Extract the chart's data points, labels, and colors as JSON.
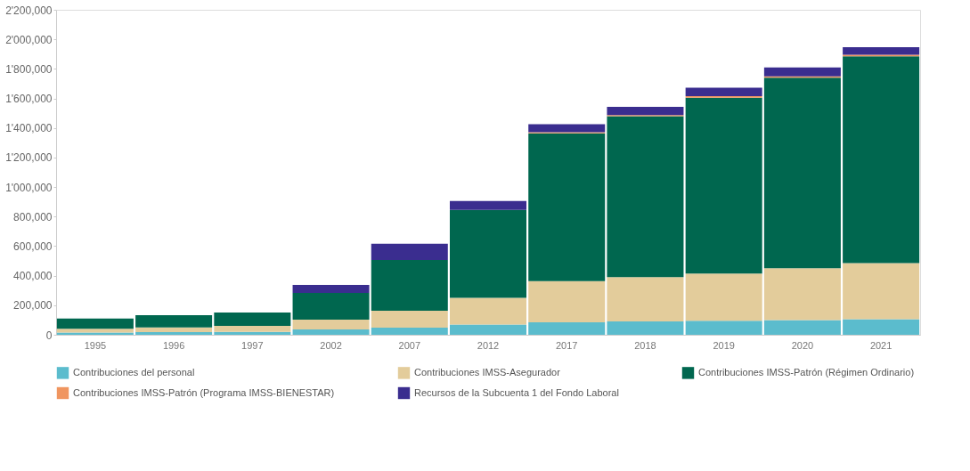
{
  "chart_data": {
    "type": "bar",
    "stacked": true,
    "categories": [
      "1995",
      "1996",
      "1997",
      "2002",
      "2007",
      "2012",
      "2017",
      "2018",
      "2019",
      "2020",
      "2021"
    ],
    "series": [
      {
        "name": "Contribuciones del personal",
        "color": "#5bbccd",
        "values": [
          15000,
          18000,
          20000,
          36000,
          48000,
          70000,
          85000,
          90000,
          95000,
          100000,
          105000
        ]
      },
      {
        "name": "Contribuciones IMSS-Asegurador",
        "color": "#e3cc9b",
        "values": [
          25000,
          32000,
          40000,
          66000,
          115000,
          180000,
          278000,
          300000,
          320000,
          350000,
          380000
        ]
      },
      {
        "name": "Contribuciones IMSS-Patrón (Régimen Ordinario)",
        "color": "#00674f",
        "values": [
          70000,
          83000,
          91000,
          181000,
          344000,
          595000,
          1000000,
          1090000,
          1190000,
          1290000,
          1400000
        ]
      },
      {
        "name": "Contribuciones IMSS-Patrón (Programa IMSS-BIENESTAR)",
        "color": "#f0955f",
        "values": [
          0,
          0,
          0,
          0,
          0,
          0,
          8000,
          8000,
          10000,
          10000,
          10000
        ]
      },
      {
        "name": "Recursos de la Subcuenta 1 del Fondo Laboral",
        "color": "#3a2d8f",
        "values": [
          0,
          0,
          0,
          54000,
          109000,
          60000,
          55000,
          55000,
          57000,
          60000,
          52000
        ]
      }
    ],
    "ylim": [
      0,
      2200000
    ],
    "yticks": [
      0,
      {
        "value": 200000,
        "label": "200,000"
      },
      {
        "value": 400000,
        "label": "400,000"
      },
      {
        "value": 600000,
        "label": "600,000"
      },
      {
        "value": 800000,
        "label": "800,000"
      },
      {
        "value": 1000000,
        "label": "1'000,000"
      },
      {
        "value": 1200000,
        "label": "1'200,000"
      },
      {
        "value": 1400000,
        "label": "1'400,000"
      },
      {
        "value": 1600000,
        "label": "1'600,000"
      },
      {
        "value": 1800000,
        "label": "1'800,000"
      },
      {
        "value": 2000000,
        "label": "2'000,000"
      },
      {
        "value": 2200000,
        "label": "2'200,000"
      }
    ],
    "grid": false,
    "legend": "bottom"
  }
}
